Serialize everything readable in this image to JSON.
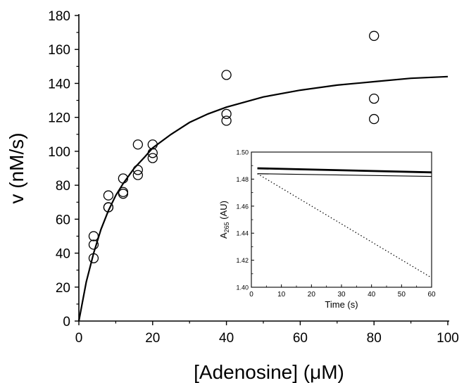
{
  "chart_data": [
    {
      "type": "scatter",
      "xlabel": "[Adenosine] (μM)",
      "ylabel": "v (nM/s)",
      "xlim": [
        0,
        100
      ],
      "ylim": [
        0,
        180
      ],
      "x_ticks": [
        "0",
        "20",
        "40",
        "60",
        "80",
        "100"
      ],
      "y_ticks": [
        "0",
        "20",
        "40",
        "60",
        "80",
        "100",
        "120",
        "140",
        "160",
        "180"
      ],
      "grid": false,
      "series": [
        {
          "marker": "open-circle",
          "points": [
            {
              "x": 4,
              "y": 50
            },
            {
              "x": 4,
              "y": 45
            },
            {
              "x": 4,
              "y": 37
            },
            {
              "x": 8,
              "y": 74
            },
            {
              "x": 8,
              "y": 67
            },
            {
              "x": 8,
              "y": 67
            },
            {
              "x": 12,
              "y": 84
            },
            {
              "x": 12,
              "y": 76
            },
            {
              "x": 12,
              "y": 75
            },
            {
              "x": 16,
              "y": 104
            },
            {
              "x": 16,
              "y": 89
            },
            {
              "x": 16,
              "y": 86
            },
            {
              "x": 20,
              "y": 104
            },
            {
              "x": 20,
              "y": 99
            },
            {
              "x": 20,
              "y": 96
            },
            {
              "x": 40,
              "y": 145
            },
            {
              "x": 40,
              "y": 122
            },
            {
              "x": 40,
              "y": 118
            },
            {
              "x": 80,
              "y": 168
            },
            {
              "x": 80,
              "y": 131
            },
            {
              "x": 80,
              "y": 119
            }
          ]
        },
        {
          "line": "solid",
          "points": [
            {
              "x": 0,
              "y": 0
            },
            {
              "x": 2,
              "y": 23
            },
            {
              "x": 4,
              "y": 40
            },
            {
              "x": 6,
              "y": 54
            },
            {
              "x": 8,
              "y": 65
            },
            {
              "x": 10,
              "y": 74
            },
            {
              "x": 12,
              "y": 81
            },
            {
              "x": 15,
              "y": 90
            },
            {
              "x": 18,
              "y": 97
            },
            {
              "x": 20,
              "y": 102
            },
            {
              "x": 25,
              "y": 110
            },
            {
              "x": 30,
              "y": 117
            },
            {
              "x": 35,
              "y": 122
            },
            {
              "x": 40,
              "y": 126
            },
            {
              "x": 50,
              "y": 132
            },
            {
              "x": 60,
              "y": 136
            },
            {
              "x": 70,
              "y": 139
            },
            {
              "x": 80,
              "y": 141
            },
            {
              "x": 90,
              "y": 143
            },
            {
              "x": 100,
              "y": 144
            }
          ]
        }
      ]
    },
    {
      "type": "line",
      "xlabel": "Time (s)",
      "ylabel_main": "A",
      "ylabel_sub": "265",
      "ylabel_tail": " (AU)",
      "xlim": [
        0,
        60
      ],
      "ylim": [
        1.4,
        1.5
      ],
      "x_ticks": [
        "0",
        "10",
        "20",
        "30",
        "40",
        "50",
        "60"
      ],
      "y_ticks": [
        "1.40",
        "1.42",
        "1.44",
        "1.46",
        "1.48",
        "1.50"
      ],
      "series": [
        {
          "style": "thick",
          "x": [
            2,
            60
          ],
          "y": [
            1.488,
            1.485
          ]
        },
        {
          "style": "thin",
          "x": [
            2,
            60
          ],
          "y": [
            1.484,
            1.482
          ]
        },
        {
          "style": "dotted",
          "x": [
            2,
            60
          ],
          "y": [
            1.484,
            1.407
          ]
        }
      ]
    }
  ]
}
